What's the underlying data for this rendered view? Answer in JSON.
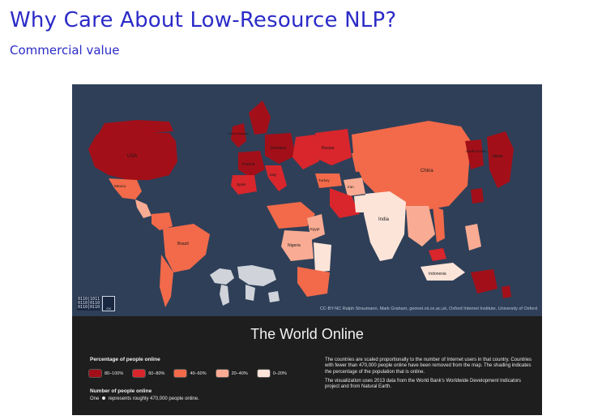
{
  "slide": {
    "title": "Why Care About Low-Resource NLP?",
    "subtitle": "Commercial value"
  },
  "map": {
    "country_labels": [
      "USA",
      "Mexico",
      "Brazil",
      "Nigeria",
      "Egypt",
      "India",
      "China",
      "Japan",
      "South Korea",
      "Indonesia",
      "Russia",
      "Germany",
      "France",
      "United Kingdom",
      "Italy",
      "Spain",
      "Turkey",
      "Iran"
    ],
    "credit": "CC-BY-NC Ralph Straumann, Mark Graham, geonet.oii.ox.ac.uk, Oxford Internet Institute, University of Oxford",
    "colors": {
      "ocean": "#2f3f58",
      "band_80_100": "#a30f18",
      "band_60_80": "#d8262c",
      "band_40_60": "#f26a4a",
      "band_20_40": "#f9ac93",
      "band_0_20": "#fde4d8"
    }
  },
  "legend": {
    "heading": "The World Online",
    "percentage_title": "Percentage of people online",
    "bands": [
      {
        "label": "80–100%",
        "color": "#a30f18"
      },
      {
        "label": "60–80%",
        "color": "#d8262c"
      },
      {
        "label": "40–60%",
        "color": "#f26a4a"
      },
      {
        "label": "20–40%",
        "color": "#f9ac93"
      },
      {
        "label": "0–20%",
        "color": "#fde4d8"
      }
    ],
    "count_title": "Number of people online",
    "count_prefix": "One",
    "count_suffix": "represents roughly 470,000 people online.",
    "description_1": "The countries are scaled proportionally to the number of Internet users in that country. Countries with fewer than 470,000 people online have been removed from the map. The shading indicates the percentage of the population that is online.",
    "description_2": "The visualization uses 2013 data from the World Bank's Worldwide Development Indicators project and from Natural Earth."
  }
}
